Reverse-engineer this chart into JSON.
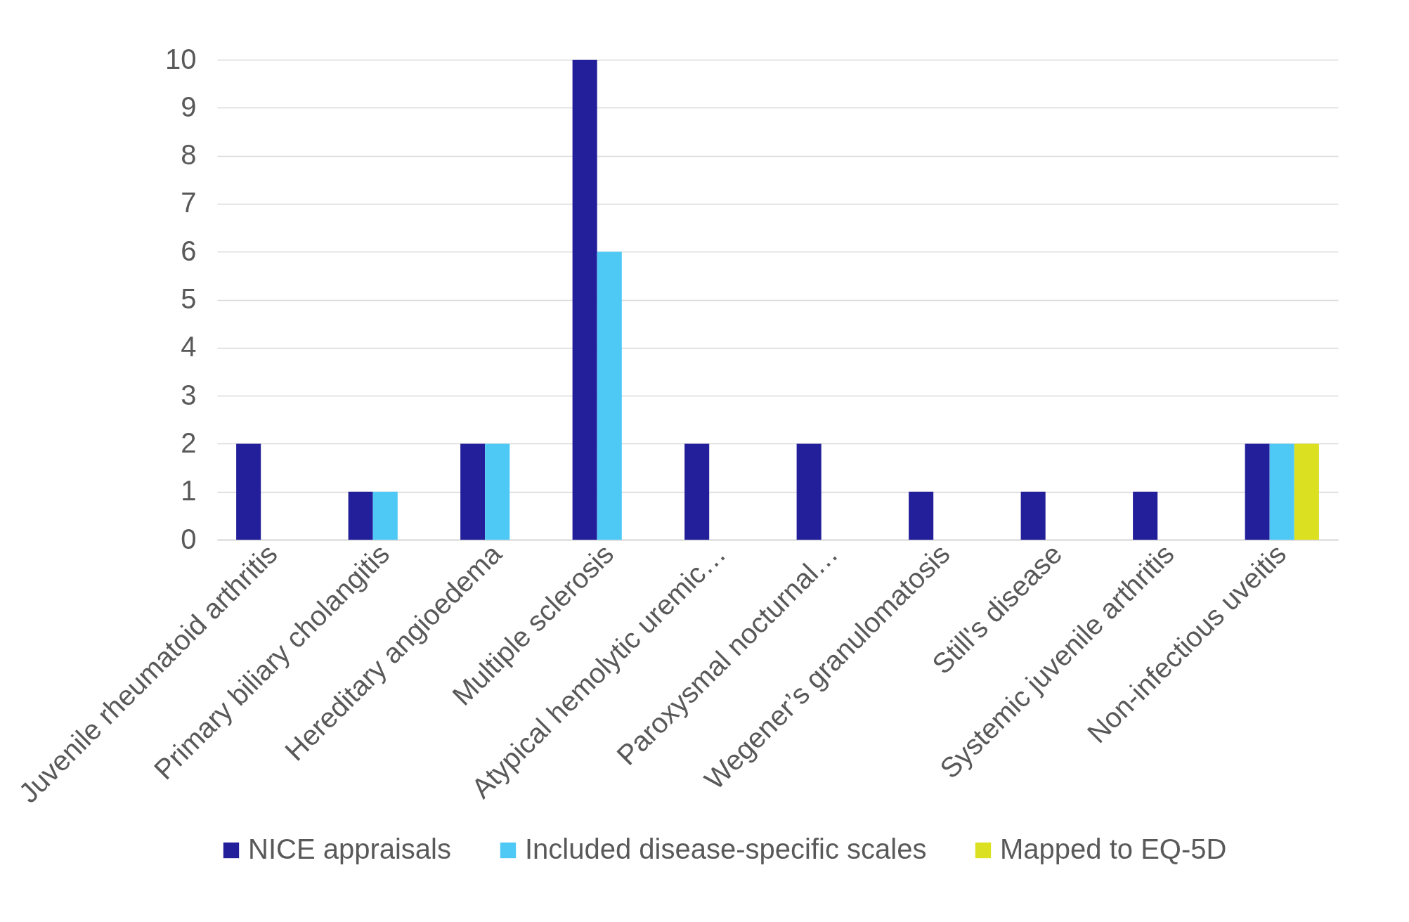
{
  "chart_data": {
    "type": "bar",
    "categories": [
      "Juvenile rheumatoid arthritis",
      "Primary biliary cholangitis",
      "Hereditary angioedema",
      "Multiple sclerosis",
      "Atypical hemolytic uremic…",
      "Paroxysmal nocturnal…",
      "Wegener’s granulomatosis",
      "Still's disease",
      "Systemic juvenile arthritis",
      "Non-infectious uveitis"
    ],
    "series": [
      {
        "name": "NICE appraisals",
        "color": "#231f9a",
        "values": [
          2,
          1,
          2,
          10,
          2,
          2,
          1,
          1,
          1,
          2
        ]
      },
      {
        "name": "Included disease-specific scales",
        "color": "#4ec9f5",
        "values": [
          null,
          1,
          2,
          6,
          null,
          null,
          null,
          null,
          null,
          2
        ]
      },
      {
        "name": "Mapped to EQ-5D",
        "color": "#dbe021",
        "values": [
          null,
          null,
          null,
          null,
          null,
          null,
          null,
          null,
          null,
          2
        ]
      }
    ],
    "ylim": [
      0,
      10
    ],
    "yticks": [
      0,
      1,
      2,
      3,
      4,
      5,
      6,
      7,
      8,
      9,
      10
    ],
    "grid": "y",
    "legend": "bottom"
  }
}
